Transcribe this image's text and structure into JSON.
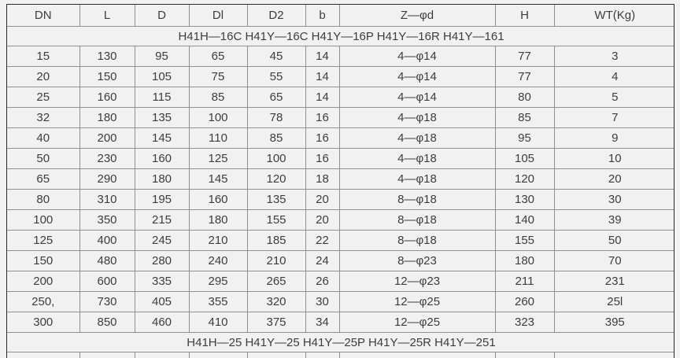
{
  "colors": {
    "page_background": "#f1f1f1",
    "outer_border": "#2b2b2b",
    "grid_line": "#8f8f8f",
    "text": "#3d3d3d"
  },
  "table": {
    "columns": [
      "DN",
      "L",
      "D",
      "Dl",
      "D2",
      "b",
      "Z—φd",
      "H",
      "WT(Kg)"
    ],
    "column_keys": [
      "dn",
      "l",
      "d",
      "dl",
      "d2",
      "b",
      "z-phi-d",
      "h",
      "wt-kg"
    ],
    "group1_title": "H41H—16C H41Y—16C H41Y—16P H41Y—16R H41Y—161",
    "group2_title": "H41H—25 H41Y—25 H41Y—25P H41Y—25R H41Y—251",
    "rows": [
      [
        "15",
        "130",
        "95",
        "65",
        "45",
        "14",
        "4—φ14",
        "77",
        "3"
      ],
      [
        "20",
        "150",
        "105",
        "75",
        "55",
        "14",
        "4—φ14",
        "77",
        "4"
      ],
      [
        "25",
        "160",
        "115",
        "85",
        "65",
        "14",
        "4—φ14",
        "80",
        "5"
      ],
      [
        "32",
        "180",
        "135",
        "100",
        "78",
        "16",
        "4—φ18",
        "85",
        "7"
      ],
      [
        "40",
        "200",
        "145",
        "110",
        "85",
        "16",
        "4—φ18",
        "95",
        "9"
      ],
      [
        "50",
        "230",
        "160",
        "125",
        "100",
        "16",
        "4—φ18",
        "105",
        "10"
      ],
      [
        "65",
        "290",
        "180",
        "145",
        "120",
        "18",
        "4—φ18",
        "120",
        "20"
      ],
      [
        "80",
        "310",
        "195",
        "160",
        "135",
        "20",
        "8—φ18",
        "130",
        "30"
      ],
      [
        "100",
        "350",
        "215",
        "180",
        "155",
        "20",
        "8—φ18",
        "140",
        "39"
      ],
      [
        "125",
        "400",
        "245",
        "210",
        "185",
        "22",
        "8—φ18",
        "155",
        "50"
      ],
      [
        "150",
        "480",
        "280",
        "240",
        "210",
        "24",
        "8—φ23",
        "180",
        "70"
      ],
      [
        "200",
        "600",
        "335",
        "295",
        "265",
        "26",
        "12—φ23",
        "211",
        "231"
      ],
      [
        "250,",
        "730",
        "405",
        "355",
        "320",
        "30",
        "12—φ25",
        "260",
        "25l"
      ],
      [
        "300",
        "850",
        "460",
        "410",
        "375",
        "34",
        "12—φ25",
        "323",
        "395"
      ]
    ]
  }
}
